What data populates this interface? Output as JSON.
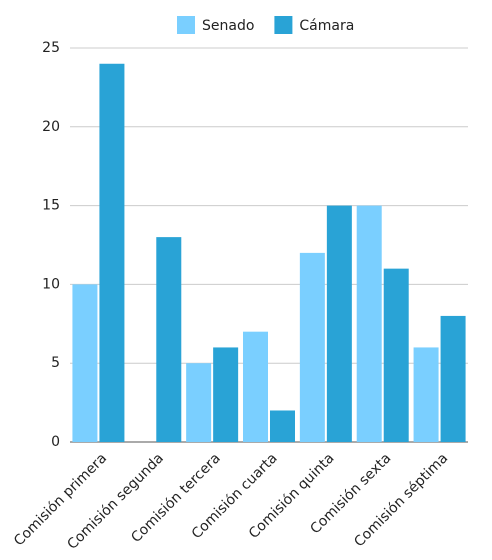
{
  "chart_data": {
    "type": "bar",
    "categories": [
      "Comisión primera",
      "Comisión segunda",
      "Comisión tercera",
      "Comisión cuarta",
      "Comisión quinta",
      "Comisión sexta",
      "Comisión séptima"
    ],
    "series": [
      {
        "name": "Senado",
        "color": "#7acfff",
        "values": [
          10,
          0,
          5,
          7,
          12,
          15,
          6
        ]
      },
      {
        "name": "Cámara",
        "color": "#29a3d6",
        "values": [
          24,
          13,
          6,
          2,
          15,
          11,
          8
        ]
      }
    ],
    "ylim": [
      0,
      25
    ],
    "yticks": [
      0,
      5,
      10,
      15,
      20,
      25
    ],
    "grid": true,
    "legend": "top"
  }
}
